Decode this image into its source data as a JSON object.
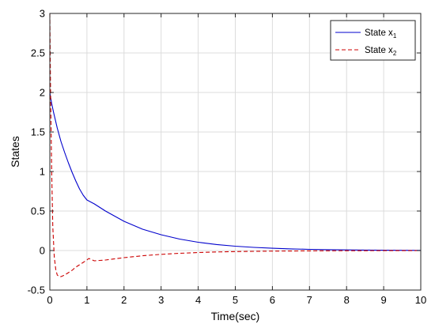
{
  "chart_data": {
    "type": "line",
    "title": "",
    "xlabel": "Time(sec)",
    "ylabel": "States",
    "xlim": [
      0,
      10
    ],
    "ylim": [
      -0.5,
      3
    ],
    "xticks": [
      0,
      1,
      2,
      3,
      4,
      5,
      6,
      7,
      8,
      9,
      10
    ],
    "yticks": [
      -0.5,
      0,
      0.5,
      1,
      1.5,
      2,
      2.5,
      3
    ],
    "xtick_labels": [
      "0",
      "1",
      "2",
      "3",
      "4",
      "5",
      "6",
      "7",
      "8",
      "9",
      "10"
    ],
    "ytick_labels": [
      "-0.5",
      "0",
      "0.5",
      "1",
      "1.5",
      "2",
      "2.5",
      "3"
    ],
    "grid": true,
    "legend_position": "top-right",
    "series": [
      {
        "name": "State x",
        "subscript": "1",
        "color": "#0000cc",
        "style": "solid",
        "x": [
          0,
          0.02,
          0.05,
          0.1,
          0.2,
          0.3,
          0.4,
          0.5,
          0.6,
          0.7,
          0.8,
          0.9,
          1.0,
          1.2,
          1.5,
          2.0,
          2.5,
          3.0,
          3.5,
          4.0,
          4.5,
          5.0,
          5.5,
          6.0,
          6.5,
          7.0,
          7.5,
          8.0,
          8.5,
          9.0,
          9.5,
          10.0
        ],
        "y": [
          2.0,
          1.94,
          1.86,
          1.75,
          1.55,
          1.38,
          1.24,
          1.11,
          0.99,
          0.88,
          0.78,
          0.7,
          0.64,
          0.59,
          0.5,
          0.37,
          0.27,
          0.2,
          0.145,
          0.105,
          0.076,
          0.055,
          0.04,
          0.029,
          0.021,
          0.015,
          0.011,
          0.008,
          0.006,
          0.004,
          0.003,
          0.002
        ]
      },
      {
        "name": "State x",
        "subscript": "2",
        "color": "#cc0000",
        "style": "dashed",
        "x": [
          0,
          0.02,
          0.05,
          0.08,
          0.12,
          0.16,
          0.2,
          0.25,
          0.3,
          0.4,
          0.5,
          0.6,
          0.7,
          0.8,
          0.9,
          1.0,
          1.05,
          1.2,
          1.5,
          2.0,
          2.5,
          3.0,
          3.5,
          4.0,
          4.5,
          5.0,
          6.0,
          7.0,
          8.0,
          9.0,
          10.0
        ],
        "y": [
          3.0,
          2.0,
          1.0,
          0.3,
          -0.08,
          -0.24,
          -0.31,
          -0.33,
          -0.33,
          -0.31,
          -0.28,
          -0.25,
          -0.21,
          -0.18,
          -0.15,
          -0.12,
          -0.1,
          -0.13,
          -0.12,
          -0.09,
          -0.066,
          -0.048,
          -0.035,
          -0.025,
          -0.018,
          -0.013,
          -0.007,
          -0.004,
          -0.002,
          -0.001,
          0.0
        ]
      }
    ]
  }
}
